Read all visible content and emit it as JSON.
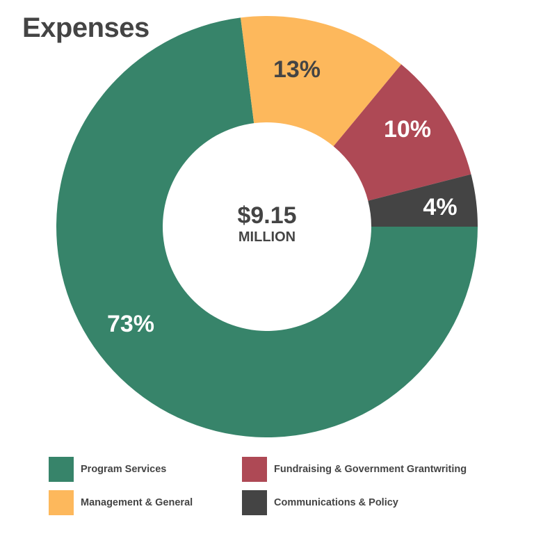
{
  "chart_data": {
    "type": "pie",
    "variant": "donut",
    "title": "Expenses",
    "center_value": "$9.15",
    "center_unit": "MILLION",
    "slices": [
      {
        "label": "Program Services",
        "value": 73,
        "display": "73%",
        "color": "#37846a",
        "text_color": "#ffffff"
      },
      {
        "label": "Management & General",
        "value": 13,
        "display": "13%",
        "color": "#fdb85c",
        "text_color": "#444444"
      },
      {
        "label": "Fundraising & Government Grantwriting",
        "value": 10,
        "display": "10%",
        "color": "#ae4955",
        "text_color": "#ffffff"
      },
      {
        "label": "Communications & Policy",
        "value": 4,
        "display": "4%",
        "color": "#444444",
        "text_color": "#ffffff"
      }
    ],
    "legend_order": [
      0,
      2,
      1,
      3
    ],
    "legend_position": "bottom"
  }
}
